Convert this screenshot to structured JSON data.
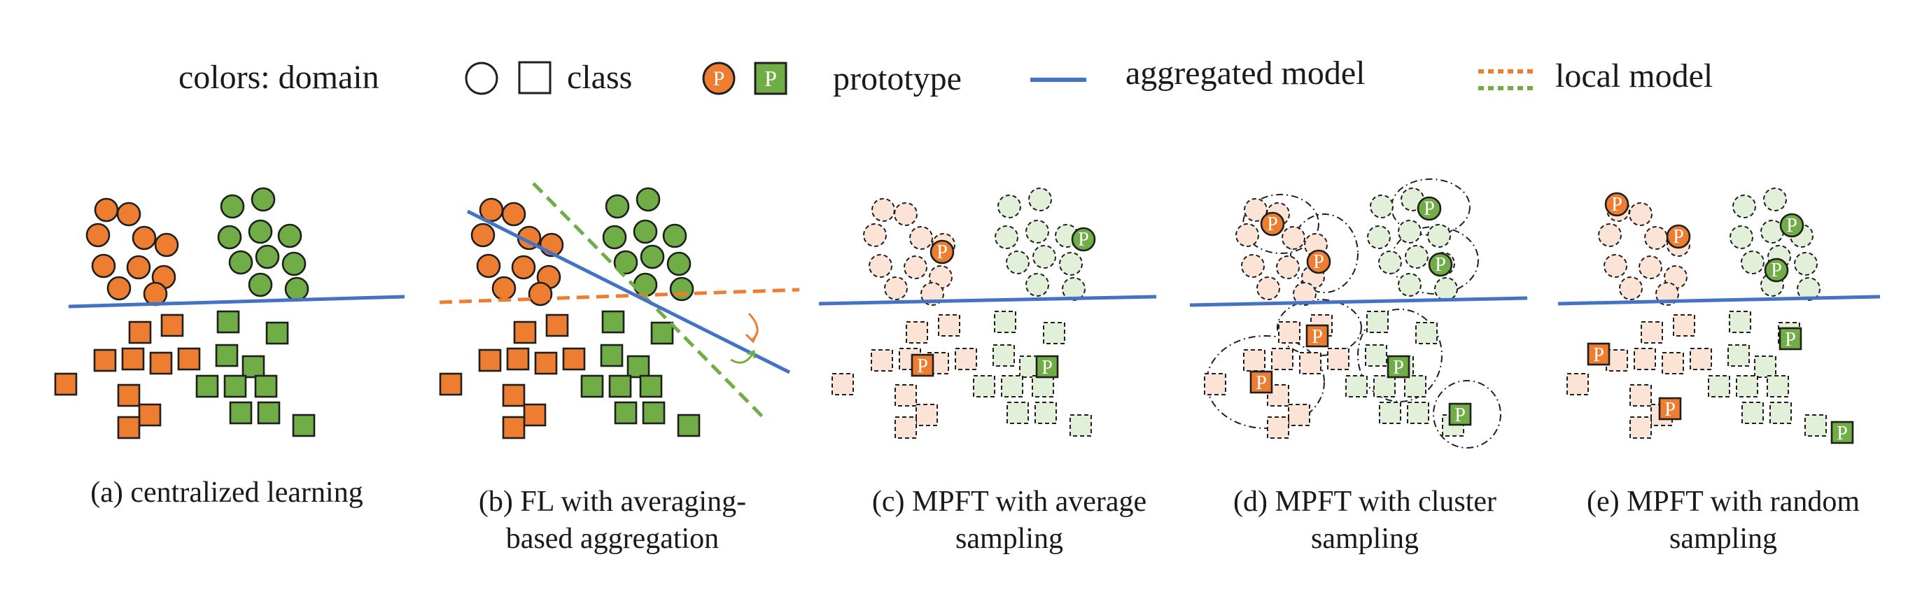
{
  "legend": {
    "domain_label": "colors: domain",
    "class_label": "class",
    "prototype_label": "prototype",
    "aggregated_label": "aggregated model",
    "local_label": "local model",
    "prototype_glyph": "P"
  },
  "colors": {
    "orange": "#ED7D31",
    "orange_light": "#FBE3D6",
    "green": "#70AD47",
    "green_light": "#E2F0D9",
    "aggregated_line": "#4472C4",
    "outline": "#1f1f1f"
  },
  "panels": [
    {
      "id": "a",
      "caption_lines": [
        "(a) centralized learning"
      ]
    },
    {
      "id": "b",
      "caption_lines": [
        "(b) FL with averaging-",
        "based aggregation"
      ]
    },
    {
      "id": "c",
      "caption_lines": [
        "(c) MPFT with average",
        "sampling"
      ]
    },
    {
      "id": "d",
      "caption_lines": [
        "(d) MPFT with cluster",
        "sampling"
      ]
    },
    {
      "id": "e",
      "caption_lines": [
        "(e) MPFT with random",
        "sampling"
      ]
    }
  ]
}
